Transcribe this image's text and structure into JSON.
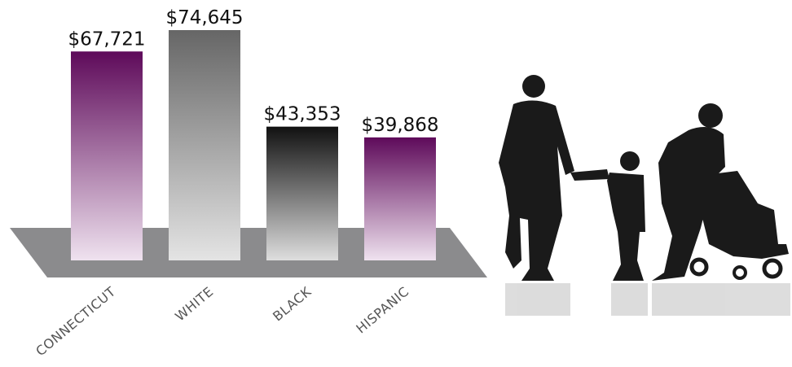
{
  "chart_data": {
    "type": "bar",
    "categories": [
      "CONNECTICUT",
      "WHITE",
      "BLACK",
      "HISPANIC"
    ],
    "values": [
      67721,
      74645,
      43353,
      39868
    ],
    "value_labels": [
      "$67,721",
      "$74,645",
      "$43,353",
      "$39,868"
    ],
    "colors": [
      [
        "#5e0a5a",
        "#efe2ef"
      ],
      [
        "#666666",
        "#e4e4e4"
      ],
      [
        "#111111",
        "#dedede"
      ],
      [
        "#5e0a5a",
        "#efe2ef"
      ]
    ]
  }
}
